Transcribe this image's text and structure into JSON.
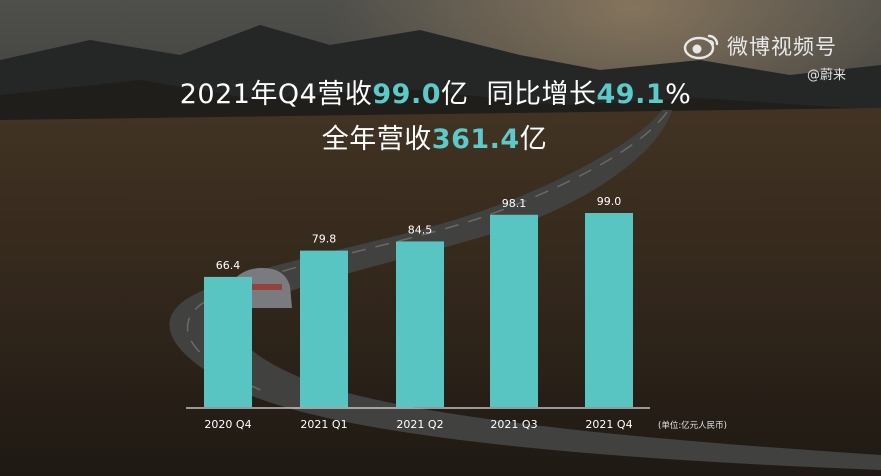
{
  "headline": {
    "line1": {
      "prefix": "2021年Q4营收",
      "value": "99.0",
      "unit": "亿",
      "yoy_label": "同比增长",
      "yoy_value": "49.1",
      "yoy_unit": "%"
    },
    "line2": {
      "prefix": "全年营收",
      "value": "361.4",
      "unit": "亿"
    }
  },
  "watermark": {
    "platform": "微博视频号",
    "handle": "@蔚来",
    "icon": "weibo-eye-icon"
  },
  "colors": {
    "bar": "#59c5c3",
    "accent": "#5ec9c9",
    "text": "#ffffff"
  },
  "chart_data": {
    "type": "bar",
    "categories": [
      "2020 Q4",
      "2021 Q1",
      "2021 Q2",
      "2021 Q3",
      "2021 Q4"
    ],
    "values": [
      66.4,
      79.8,
      84.5,
      98.1,
      99.0
    ],
    "data_labels": [
      "66.4",
      "79.8",
      "84.5",
      "98.1",
      "99.0"
    ],
    "unit_note": "(单位:亿元人民币)",
    "ylim": [
      0,
      100
    ],
    "grid": false,
    "legend": "none"
  }
}
